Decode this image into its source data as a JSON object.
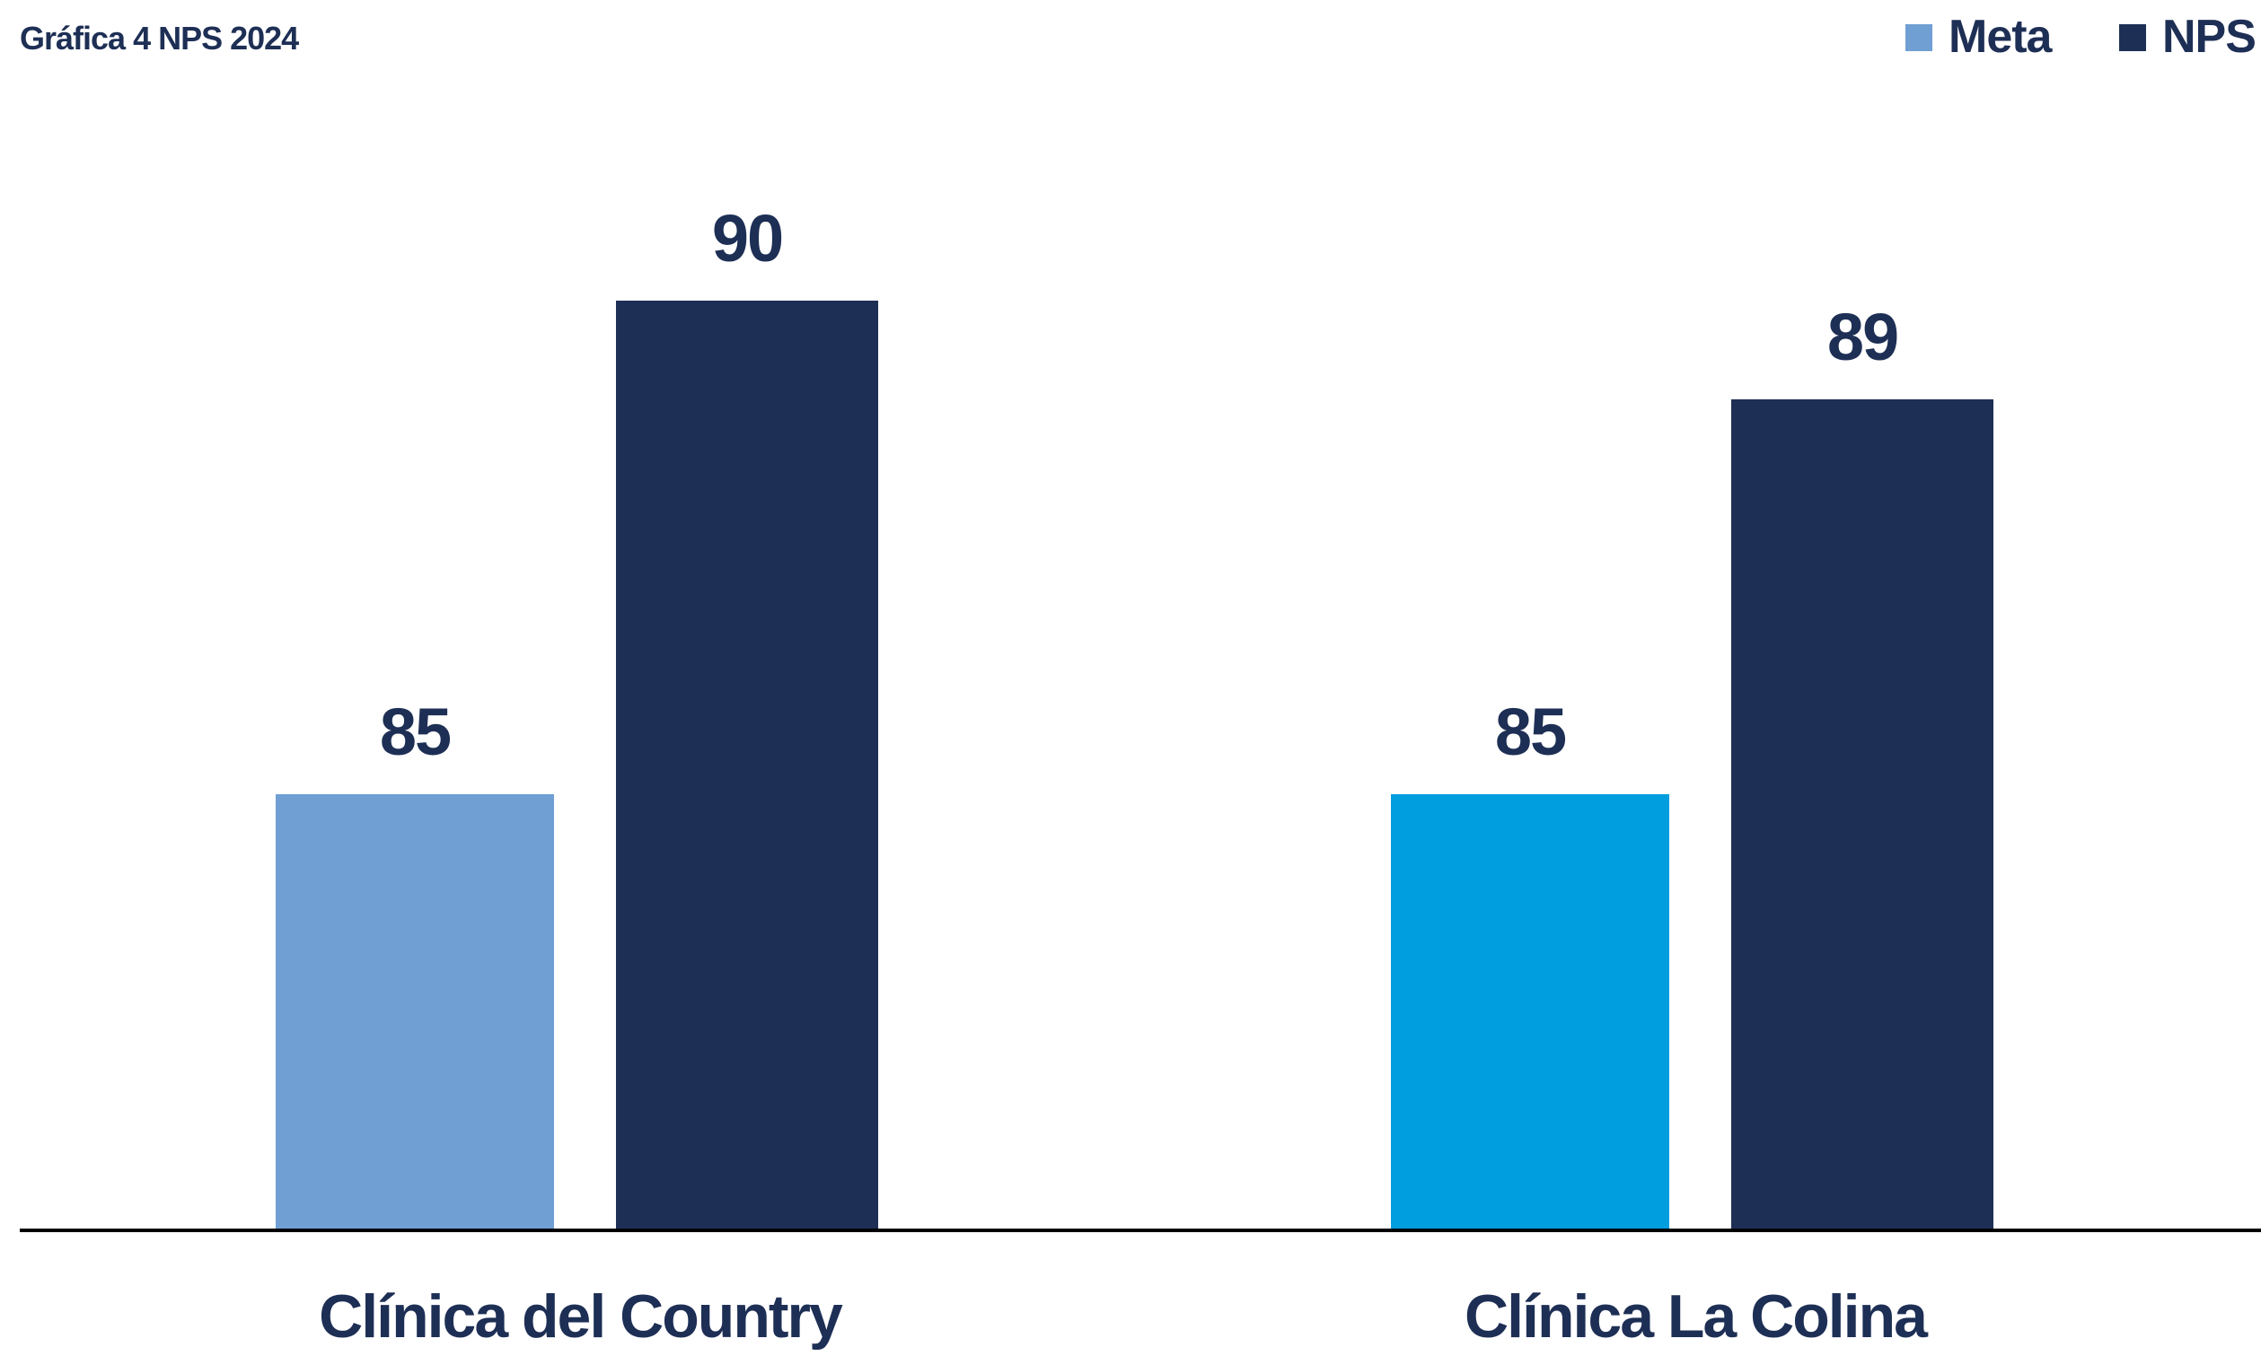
{
  "chart_data": {
    "type": "bar",
    "title": "Gráfica 4 NPS 2024",
    "categories": [
      "Clínica del Country",
      "Clínica La Colina"
    ],
    "series": [
      {
        "name": "Meta",
        "values": [
          85,
          85
        ],
        "color": "#6f9fd3",
        "point_colors": [
          "#6f9fd3",
          "#009ddf"
        ]
      },
      {
        "name": "NPS",
        "values": [
          90,
          89
        ],
        "color": "#1e2f55",
        "point_colors": [
          "#1e2f55",
          "#1e2f55"
        ]
      }
    ],
    "data_labels": [
      [
        "85",
        "85"
      ],
      [
        "90",
        "89"
      ]
    ],
    "legend": {
      "position": "top-right",
      "entries": [
        "Meta",
        "NPS"
      ]
    },
    "ylim": [
      80.6,
      91.2
    ],
    "grid": false,
    "xlabel": "",
    "ylabel": "",
    "text_color": "#1e2f55",
    "axis_color": "#000000"
  }
}
